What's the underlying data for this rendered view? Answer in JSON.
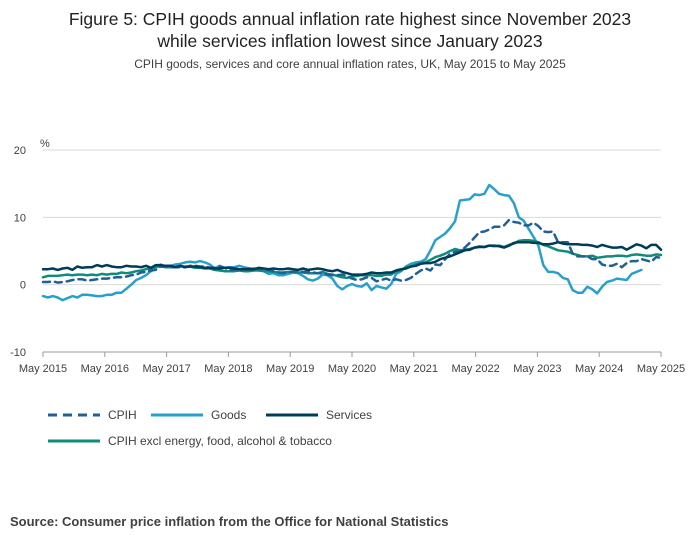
{
  "title_line1": "Figure 5: CPIH goods annual inflation rate highest since November 2023",
  "title_line2": "while services inflation lowest since January 2023",
  "subtitle": "CPIH goods, services and core annual inflation rates, UK, May 2015 to May 2025",
  "source": "Source: Consumer price inflation from the Office for National Statistics",
  "chart_data": {
    "type": "line",
    "title": "Figure 5: CPIH goods annual inflation rate highest since November 2023 while services inflation lowest since January 2023",
    "subtitle": "CPIH goods, services and core annual inflation rates, UK, May 2015 to May 2025",
    "ylabel": "%",
    "xlabel": "",
    "ylim": [
      -10,
      20
    ],
    "yticks": [
      "20",
      "10",
      "0",
      "-10"
    ],
    "ytick_values": [
      20,
      10,
      0,
      -10
    ],
    "x_start": "May 2015",
    "x_end": "May 2025",
    "xticks": [
      "May 2015",
      "May 2016",
      "May 2017",
      "May 2018",
      "May 2019",
      "May 2020",
      "May 2021",
      "May 2022",
      "May 2023",
      "May 2024",
      "May 2025"
    ],
    "legend_position": "bottom",
    "series": [
      {
        "name": "CPIH",
        "color": "#206095",
        "dash": "dashed",
        "values": [
          0.4,
          0.4,
          0.5,
          0.3,
          0.4,
          0.5,
          0.7,
          0.8,
          0.8,
          0.6,
          0.7,
          0.8,
          0.9,
          0.9,
          1.0,
          1.1,
          1.1,
          1.2,
          1.4,
          1.5,
          1.8,
          1.9,
          2.1,
          2.2,
          2.7,
          2.7,
          2.6,
          2.6,
          2.6,
          2.6,
          2.8,
          2.8,
          2.7,
          2.7,
          2.5,
          2.5,
          2.7,
          2.5,
          2.2,
          2.2,
          2.3,
          2.3,
          2.4,
          2.4,
          2.3,
          2.3,
          2.2,
          2.0,
          1.8,
          1.7,
          1.9,
          1.9,
          2.0,
          1.9,
          1.9,
          1.8,
          1.7,
          1.7,
          1.5,
          1.4,
          1.4,
          1.5,
          1.3,
          0.9,
          0.7,
          0.8,
          1.1,
          1.0,
          0.5,
          0.7,
          0.9,
          0.6,
          0.8,
          0.6,
          0.7,
          1.0,
          1.6,
          2.1,
          2.4,
          2.1,
          3.0,
          2.9,
          3.8,
          4.6,
          4.9,
          4.9,
          5.5,
          6.2,
          7.0,
          7.8,
          7.9,
          8.2,
          8.6,
          8.6,
          8.8,
          9.6,
          9.3,
          9.2,
          8.8,
          8.8,
          9.2,
          8.7,
          7.9,
          7.8,
          7.9,
          6.3,
          6.3,
          6.3,
          4.6,
          4.2,
          4.2,
          4.2,
          3.8,
          3.8,
          3.0,
          2.8,
          2.8,
          3.1,
          2.6,
          3.2,
          3.5,
          3.5,
          3.8,
          3.6,
          3.4,
          4.1,
          4.0
        ]
      },
      {
        "name": "Goods",
        "color": "#27a0cc",
        "dash": "solid",
        "values": [
          -1.7,
          -1.9,
          -1.7,
          -1.9,
          -2.3,
          -2.0,
          -1.7,
          -1.9,
          -1.5,
          -1.5,
          -1.6,
          -1.7,
          -1.7,
          -1.5,
          -1.5,
          -1.2,
          -1.2,
          -0.6,
          0.0,
          0.7,
          1.0,
          1.4,
          2.0,
          2.5,
          3.0,
          2.6,
          2.8,
          3.0,
          3.1,
          3.3,
          3.4,
          3.3,
          3.5,
          3.3,
          3.0,
          2.4,
          2.8,
          2.5,
          2.6,
          2.6,
          2.8,
          2.6,
          2.4,
          2.4,
          2.3,
          2.0,
          1.6,
          1.7,
          1.4,
          1.4,
          1.6,
          1.8,
          1.7,
          1.3,
          0.8,
          0.6,
          0.9,
          1.5,
          1.4,
          0.9,
          -0.2,
          -0.7,
          -0.2,
          0.1,
          -0.2,
          -0.3,
          0.2,
          -0.8,
          -0.2,
          -0.4,
          -0.6,
          0.1,
          1.6,
          2.0,
          2.7,
          3.1,
          3.3,
          3.4,
          3.8,
          5.1,
          6.6,
          7.1,
          7.6,
          8.4,
          9.4,
          12.5,
          12.6,
          12.7,
          13.4,
          13.3,
          13.5,
          14.8,
          14.2,
          13.5,
          13.3,
          13.2,
          12.1,
          10.0,
          9.5,
          8.3,
          7.1,
          5.8,
          2.9,
          1.9,
          1.9,
          1.7,
          1.0,
          0.8,
          -0.8,
          -1.2,
          -1.2,
          -0.3,
          -0.7,
          -1.3,
          -0.3,
          0.4,
          0.6,
          0.9,
          0.8,
          0.7,
          1.6,
          1.9,
          2.2
        ]
      },
      {
        "name": "Services",
        "color": "#003c57",
        "dash": "solid",
        "values": [
          2.3,
          2.3,
          2.4,
          2.2,
          2.4,
          2.5,
          2.2,
          2.7,
          2.5,
          2.6,
          2.6,
          2.9,
          2.7,
          2.9,
          2.7,
          2.6,
          2.6,
          2.8,
          2.7,
          2.7,
          2.6,
          2.8,
          2.5,
          2.9,
          2.9,
          2.8,
          2.8,
          2.6,
          2.8,
          2.6,
          2.7,
          2.7,
          2.6,
          2.5,
          2.5,
          2.4,
          2.4,
          2.5,
          2.5,
          2.4,
          2.3,
          2.3,
          2.3,
          2.3,
          2.5,
          2.4,
          2.3,
          2.4,
          2.3,
          2.3,
          2.4,
          2.3,
          2.2,
          2.4,
          2.2,
          2.3,
          2.4,
          2.3,
          2.1,
          2.0,
          2.2,
          1.9,
          1.7,
          1.5,
          1.5,
          1.5,
          1.6,
          1.8,
          1.7,
          1.7,
          1.8,
          1.8,
          2.1,
          2.3,
          2.4,
          2.7,
          2.8,
          3.1,
          3.2,
          3.2,
          3.4,
          3.8,
          4.0,
          4.2,
          4.5,
          4.8,
          5.1,
          5.2,
          5.5,
          5.6,
          5.6,
          5.8,
          5.8,
          5.7,
          5.5,
          5.8,
          6.2,
          6.3,
          6.3,
          6.3,
          6.2,
          6.2,
          6.0,
          6.0,
          6.1,
          6.3,
          6.1,
          6.0,
          6.0,
          6.0,
          5.9,
          5.9,
          5.8,
          5.6,
          5.9,
          5.7,
          5.5,
          5.5,
          5.6,
          5.2,
          5.6,
          6.0,
          5.8,
          5.4,
          5.9,
          5.9,
          5.2
        ]
      },
      {
        "name": "CPIH excl energy, food, alcohol & tobacco",
        "color": "#118c7b",
        "dash": "solid",
        "values": [
          1.1,
          1.3,
          1.3,
          1.3,
          1.4,
          1.5,
          1.4,
          1.5,
          1.5,
          1.4,
          1.5,
          1.4,
          1.6,
          1.5,
          1.6,
          1.6,
          1.8,
          1.7,
          1.8,
          2.0,
          2.1,
          2.3,
          2.4,
          2.7,
          2.7,
          2.6,
          2.6,
          2.6,
          2.7,
          2.7,
          2.7,
          2.5,
          2.5,
          2.4,
          2.4,
          2.2,
          2.1,
          2.0,
          2.0,
          2.0,
          2.1,
          2.0,
          2.0,
          2.1,
          2.1,
          2.0,
          2.0,
          1.9,
          1.8,
          1.8,
          1.9,
          1.9,
          1.8,
          1.8,
          1.7,
          1.7,
          1.7,
          1.9,
          1.6,
          1.5,
          1.3,
          1.1,
          1.0,
          1.2,
          1.3,
          1.4,
          1.4,
          1.4,
          1.3,
          1.3,
          1.5,
          1.5,
          2.0,
          2.1,
          2.6,
          2.7,
          3.0,
          3.2,
          3.3,
          3.7,
          4.1,
          4.3,
          4.6,
          5.0,
          5.3,
          5.1,
          5.2,
          5.3,
          5.5,
          5.7,
          5.6,
          5.8,
          5.7,
          5.8,
          5.6,
          5.9,
          6.1,
          6.5,
          6.6,
          6.6,
          6.5,
          6.3,
          5.9,
          5.7,
          5.4,
          5.1,
          5.0,
          4.9,
          4.6,
          4.4,
          4.2,
          4.2,
          4.3,
          4.0,
          4.1,
          4.2,
          4.2,
          4.3,
          4.3,
          4.2,
          4.4,
          4.5,
          4.4,
          4.3,
          4.3,
          4.5,
          4.4
        ]
      }
    ]
  }
}
